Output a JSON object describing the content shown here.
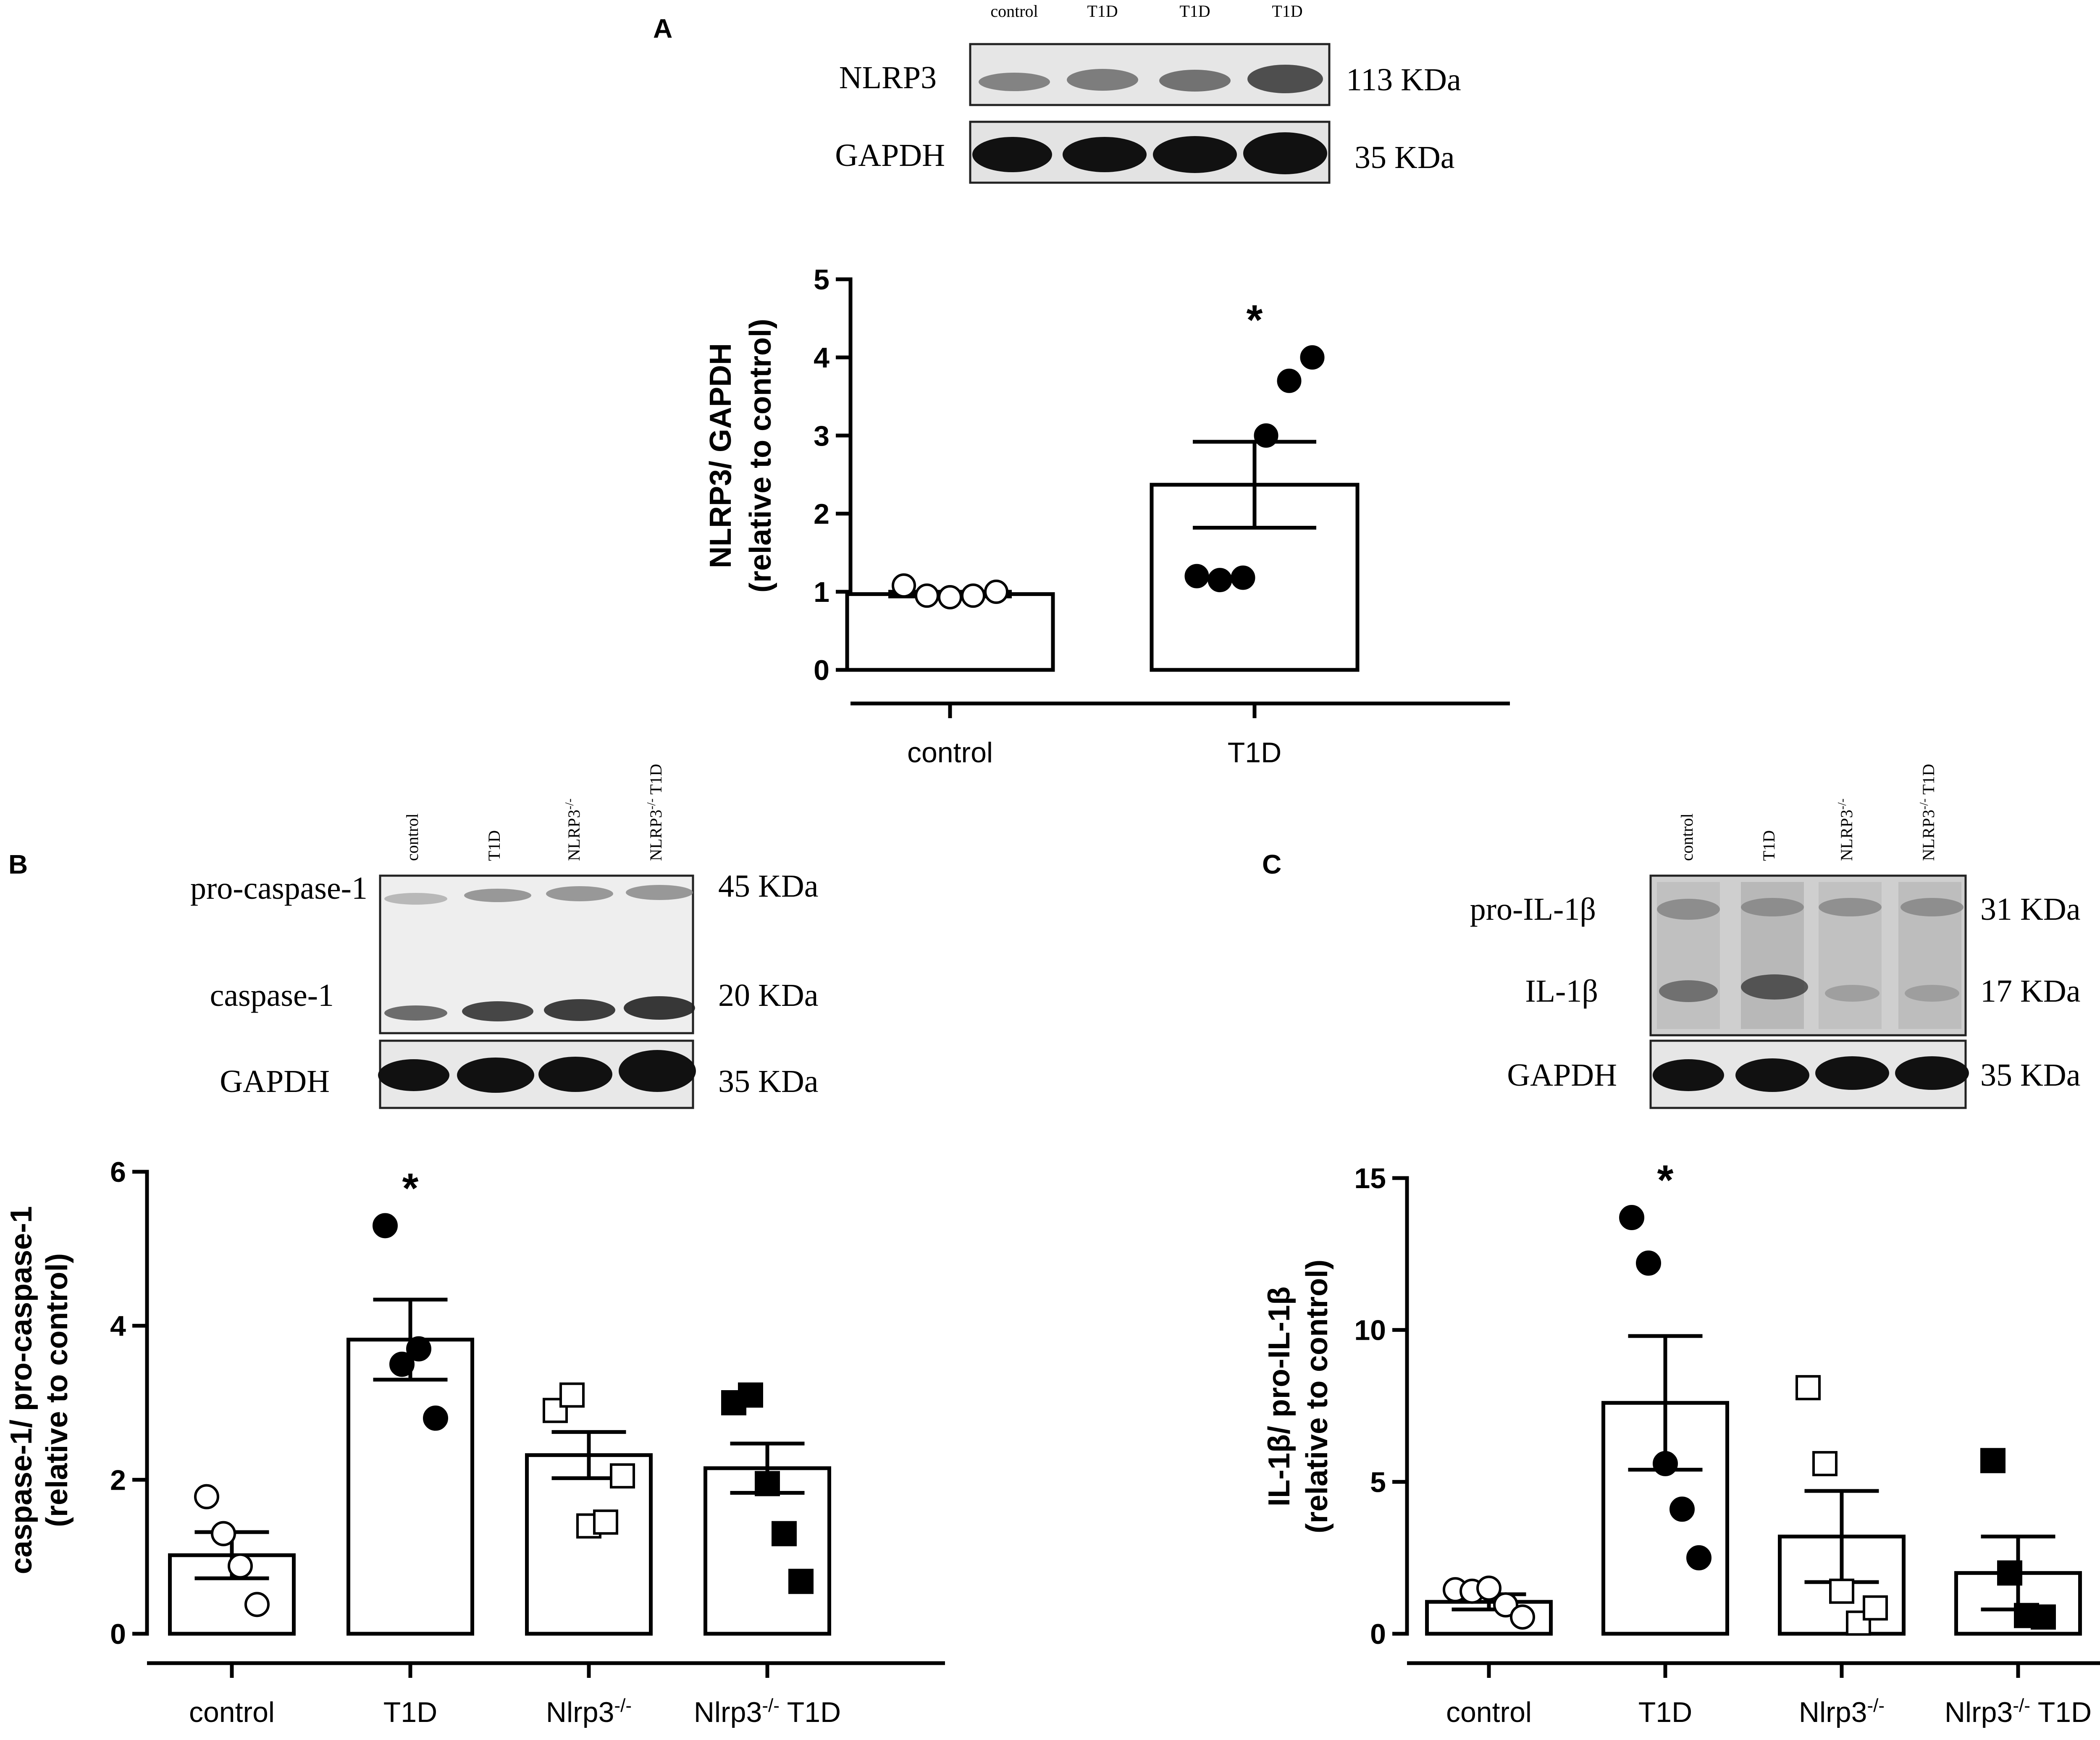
{
  "panels": [
    {
      "letter": "A",
      "blot": {
        "lanes": [
          "control",
          "T1D",
          "T1D",
          "T1D"
        ],
        "rows": [
          {
            "protein": "NLRP3",
            "size": "113 KDa"
          },
          {
            "protein": "GAPDH",
            "size": "35 KDa"
          }
        ]
      }
    },
    {
      "letter": "B",
      "blot": {
        "lanes": [
          "control",
          "T1D",
          "NLRP3-/-",
          "NLRP3-/- T1D"
        ],
        "rows": [
          {
            "protein": "pro-caspase-1",
            "size": "45 KDa"
          },
          {
            "protein": "caspase-1",
            "size": "20 KDa"
          },
          {
            "protein": "GAPDH",
            "size": "35 KDa"
          }
        ]
      }
    },
    {
      "letter": "C",
      "blot": {
        "lanes": [
          "control",
          "T1D",
          "NLRP3-/-",
          "NLRP3-/- T1D"
        ],
        "rows": [
          {
            "protein": "pro-IL-1β",
            "size": "31 KDa"
          },
          {
            "protein": "IL-1β",
            "size": "17 KDa"
          },
          {
            "protein": "GAPDH",
            "size": "35 KDa"
          }
        ]
      }
    }
  ],
  "chart_data": [
    {
      "type": "bar",
      "panel": "A",
      "ylabel_line1": "NLRP3/ GAPDH",
      "ylabel_line2": "(relative to control)",
      "ylim": [
        0,
        5
      ],
      "yticks": [
        0,
        1,
        2,
        3,
        4,
        5
      ],
      "categories": [
        "control",
        "T1D"
      ],
      "values": [
        0.97,
        2.37
      ],
      "sem": [
        0.03,
        0.55
      ],
      "points": [
        [
          1.08,
          0.95,
          0.93,
          0.95,
          1.0
        ],
        [
          1.2,
          1.15,
          1.18,
          3.0,
          3.7,
          4.0
        ]
      ],
      "markers": [
        "open-circle",
        "filled-circle"
      ],
      "significance": [
        "",
        "*"
      ]
    },
    {
      "type": "bar",
      "panel": "B",
      "ylabel_line1": "caspase-1/ pro-caspase-1",
      "ylabel_line2": "(relative to control)",
      "ylim": [
        0,
        6
      ],
      "yticks": [
        0,
        2,
        4,
        6
      ],
      "categories": [
        "control",
        "T1D",
        "Nlrp3-/-",
        "Nlrp3-/- T1D"
      ],
      "values": [
        1.02,
        3.82,
        2.32,
        2.15
      ],
      "sem": [
        0.3,
        0.52,
        0.3,
        0.32
      ],
      "points": [
        [
          1.78,
          1.3,
          0.88,
          0.38
        ],
        [
          5.3,
          3.5,
          3.7,
          2.8
        ],
        [
          2.9,
          3.1,
          1.4,
          1.45,
          2.05
        ],
        [
          3.0,
          3.1,
          1.95,
          1.3,
          0.68
        ]
      ],
      "markers": [
        "open-circle",
        "filled-circle",
        "open-square",
        "filled-square"
      ],
      "significance": [
        "",
        "*",
        "",
        ""
      ]
    },
    {
      "type": "bar",
      "panel": "C",
      "ylabel_line1": "IL-1β/ pro-IL-1β",
      "ylabel_line2": "(relative to control)",
      "ylim": [
        0,
        15
      ],
      "yticks": [
        0,
        5,
        10,
        15
      ],
      "categories": [
        "control",
        "T1D",
        "Nlrp3-/-",
        "Nlrp3-/- T1D"
      ],
      "values": [
        1.05,
        7.6,
        3.2,
        2.0
      ],
      "sem": [
        0.25,
        2.2,
        1.5,
        1.2
      ],
      "points": [
        [
          1.45,
          1.4,
          1.5,
          0.95,
          0.55
        ],
        [
          13.7,
          12.2,
          5.6,
          4.1,
          2.5
        ],
        [
          8.1,
          5.6,
          1.4,
          0.35,
          0.85
        ],
        [
          5.7,
          2.0,
          0.6,
          0.55
        ]
      ],
      "markers": [
        "open-circle",
        "filled-circle",
        "open-square",
        "filled-square"
      ],
      "significance": [
        "",
        "*",
        "",
        ""
      ]
    }
  ]
}
